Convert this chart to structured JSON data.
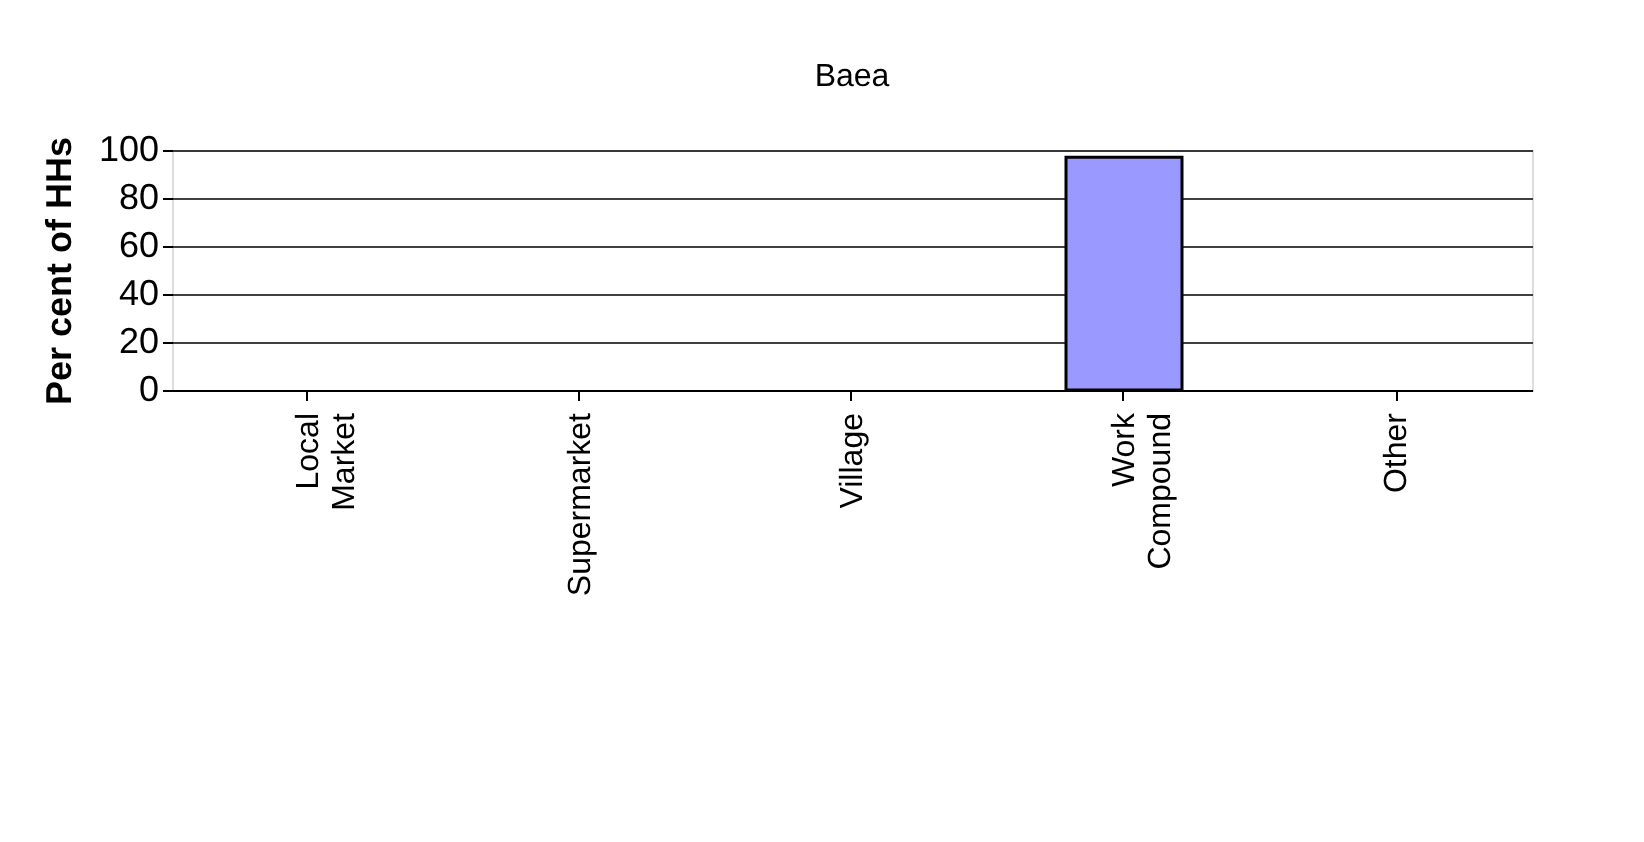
{
  "chart_data": {
    "type": "bar",
    "title": "Baea",
    "ylabel": "Per cent of HHs",
    "categories": [
      "Local Market",
      "Supermarket",
      "Village",
      "Work Compound",
      "Other"
    ],
    "values": [
      0,
      0,
      0,
      97,
      0
    ],
    "color": "#9999ff",
    "ylim": [
      0,
      100
    ],
    "yticks": [
      0,
      20,
      40,
      60,
      80,
      100
    ],
    "grid": "y"
  }
}
